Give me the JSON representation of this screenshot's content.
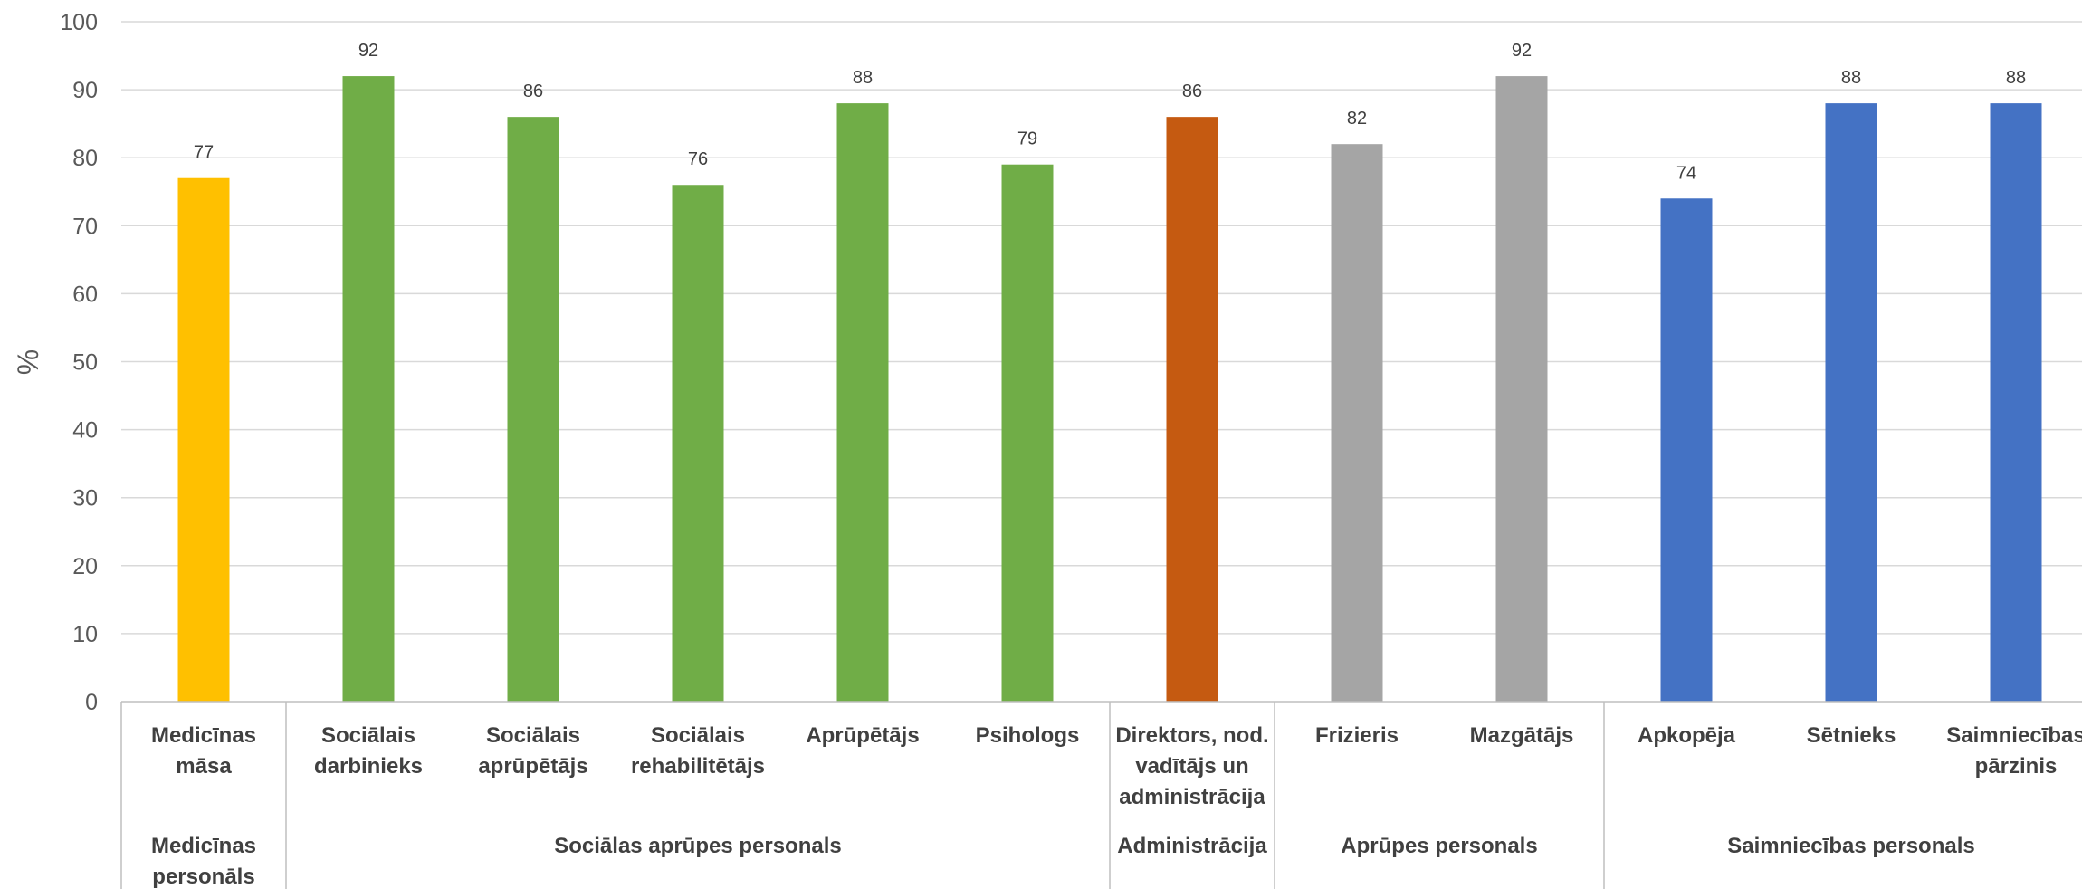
{
  "chart_data": {
    "type": "bar",
    "ylabel": "%",
    "ylim": [
      0,
      100
    ],
    "yticks": [
      "0",
      "10",
      "20",
      "30",
      "40",
      "50",
      "60",
      "70",
      "80",
      "90",
      "100"
    ],
    "grid": true,
    "categories": [
      [
        "Medicīnas",
        "māsa"
      ],
      [
        "Sociālais",
        "darbinieks"
      ],
      [
        "Sociālais",
        "aprūpētājs"
      ],
      [
        "Sociālais",
        "rehabilitētājs"
      ],
      [
        "Aprūpētājs"
      ],
      [
        "Psihologs"
      ],
      [
        "Direktors, nod.",
        "vadītājs un",
        "administrācija"
      ],
      [
        "Frizieris"
      ],
      [
        "Mazgātājs"
      ],
      [
        "Apkopēja"
      ],
      [
        "Sētnieks"
      ],
      [
        "Saimniecības",
        "pārzinis"
      ]
    ],
    "values": [
      77,
      92,
      86,
      76,
      88,
      79,
      86,
      82,
      92,
      74,
      88,
      88
    ],
    "data_labels": [
      "77",
      "92",
      "86",
      "76",
      "88",
      "79",
      "86",
      "82",
      "92",
      "74",
      "88",
      "88"
    ],
    "groups": [
      {
        "name": [
          "Medicīnas",
          "personāls"
        ],
        "start": 0,
        "count": 1,
        "color": "#FFC000"
      },
      {
        "name": [
          "Sociālas aprūpes personals"
        ],
        "start": 1,
        "count": 5,
        "color": "#70AD47"
      },
      {
        "name": [
          "Administrācija"
        ],
        "start": 6,
        "count": 1,
        "color": "#C55A11"
      },
      {
        "name": [
          "Aprūpes personals"
        ],
        "start": 7,
        "count": 2,
        "color": "#A5A5A5"
      },
      {
        "name": [
          "Saimniecības personals"
        ],
        "start": 9,
        "count": 3,
        "color": "#4472C4"
      }
    ],
    "colors": {
      "gridline": "#D9D9D9",
      "axis": "#BFBFBF",
      "text": "#404040"
    }
  }
}
